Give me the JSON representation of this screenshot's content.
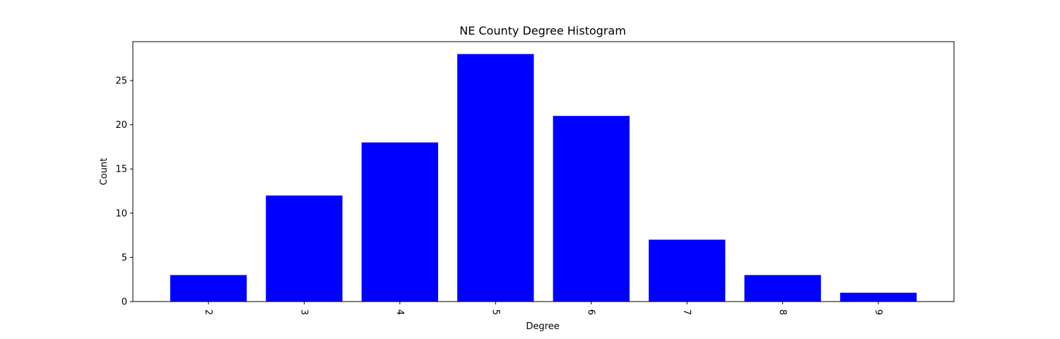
{
  "chart_data": {
    "type": "bar",
    "title": "NE County Degree Histogram",
    "xlabel": "Degree",
    "ylabel": "Count",
    "categories": [
      "2",
      "3",
      "4",
      "5",
      "6",
      "7",
      "8",
      "9"
    ],
    "values": [
      3,
      12,
      18,
      28,
      21,
      7,
      3,
      1
    ],
    "ylim": [
      0,
      29.4
    ],
    "yticks": [
      0,
      5,
      10,
      15,
      20,
      25
    ],
    "bar_color": "#0000ff",
    "grid": false,
    "xtick_rotation": "rotated clockwise (about 90 degrees)"
  }
}
